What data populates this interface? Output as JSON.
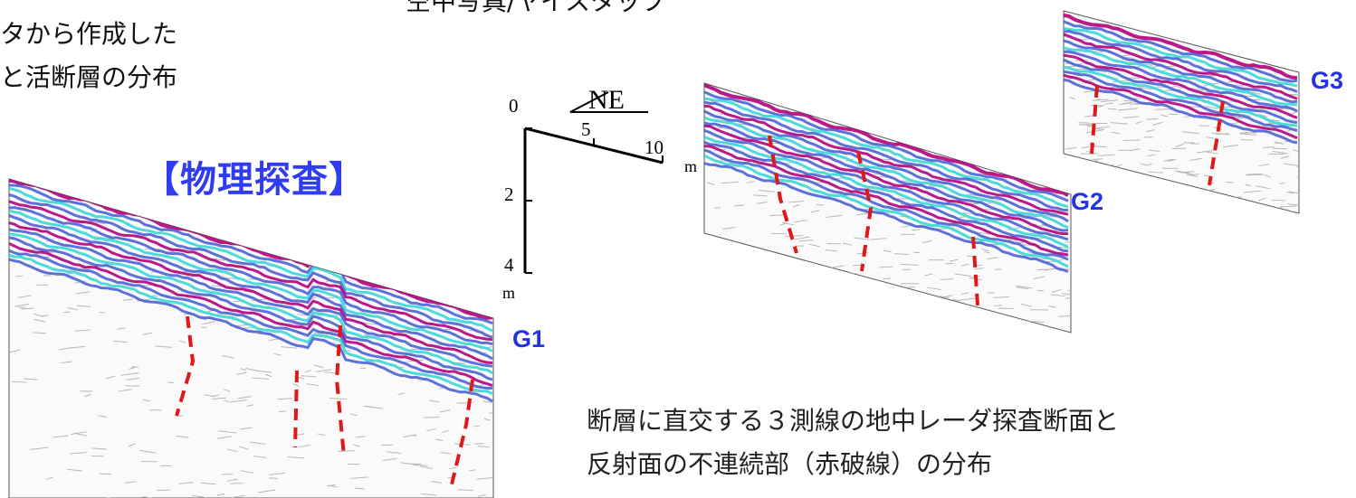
{
  "texts": {
    "top_left_line1": "タから作成した",
    "top_left_line2": "と活断層の分布",
    "top_center": "空中写真/ヤイスタップ",
    "title": "【物理探査】",
    "caption_line1": "断層に直交する３測線の地中レーダ探査断面と",
    "caption_line2": "反射面の不連続部（赤破線）の分布"
  },
  "profiles": {
    "g1": {
      "label": "G1"
    },
    "g2": {
      "label": "G2"
    },
    "g3": {
      "label": "G3"
    }
  },
  "axes": {
    "depth_ticks": [
      "0",
      "2",
      "4"
    ],
    "depth_unit": "m",
    "distance_ticks": [
      "5",
      "10"
    ],
    "distance_unit": "m",
    "direction_label": "NE"
  },
  "colors": {
    "band_magenta": "#b4007a",
    "band_blue": "#4b62d4",
    "band_cyan": "#38d6d6",
    "fault_red": "#e01818",
    "label_blue": "#2233e6",
    "title_blue": "#2f3cf0",
    "noise_gray": "#b8b8b8"
  }
}
